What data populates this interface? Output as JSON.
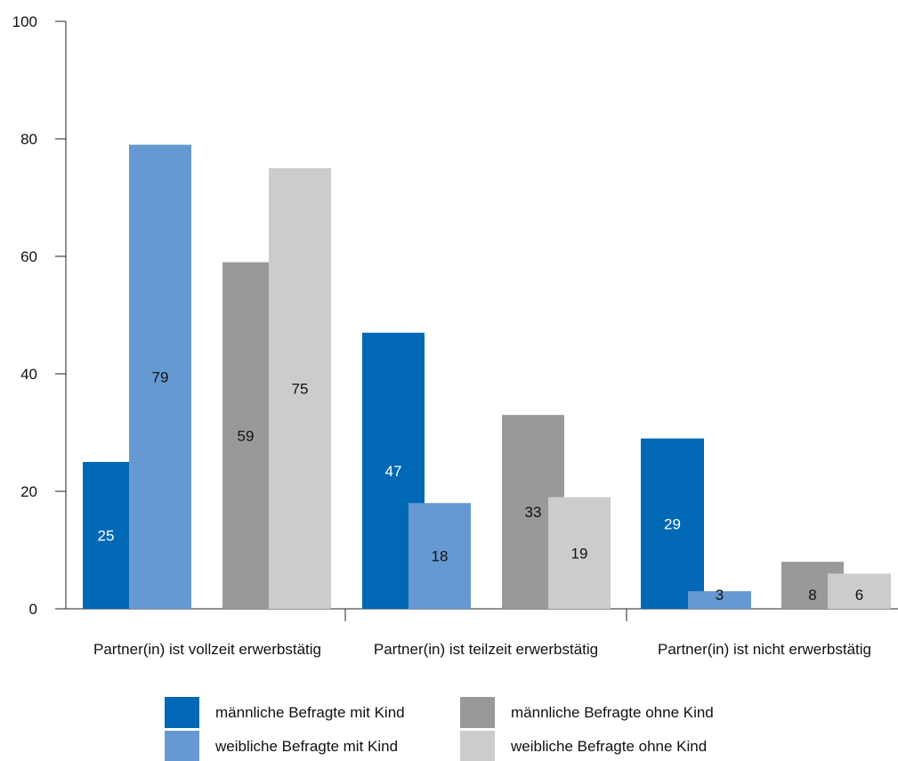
{
  "chart_data": {
    "type": "bar",
    "categories": [
      "Partner(in) ist vollzeit erwerbstätig",
      "Partner(in) ist teilzeit erwerbstätig",
      "Partner(in) ist nicht erwerbstätig"
    ],
    "series": [
      {
        "name": "männliche Befragte mit Kind",
        "color": "#0068b4",
        "label_color": "#ffffff",
        "values": [
          25,
          47,
          29
        ]
      },
      {
        "name": "weibliche Befragte mit Kind",
        "color": "#6699d2",
        "label_color": "#111111",
        "values": [
          79,
          18,
          3
        ]
      },
      {
        "name": "männliche Befragte ohne Kind",
        "color": "#999999",
        "label_color": "#111111",
        "values": [
          59,
          33,
          8
        ]
      },
      {
        "name": "weibliche Befragte ohne Kind",
        "color": "#cccccc",
        "label_color": "#111111",
        "values": [
          75,
          19,
          6
        ]
      }
    ],
    "ylim": [
      0,
      100
    ],
    "yticks": [
      0,
      20,
      40,
      60,
      80,
      100
    ],
    "title": "",
    "xlabel": "",
    "ylabel": "",
    "grid": false,
    "legend_position": "bottom"
  }
}
